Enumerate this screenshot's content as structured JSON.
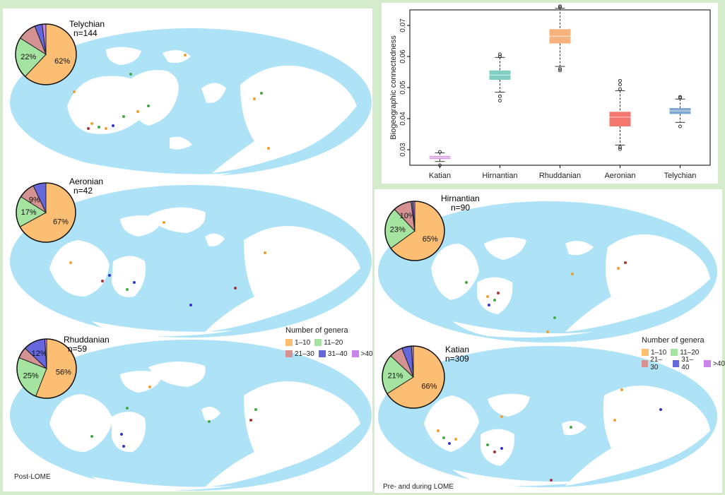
{
  "colors": {
    "background": "#d4ebcc",
    "ocean": "#aee3f7",
    "land": "#ffffff",
    "c1_10": "#fbbe72",
    "c11_20": "#a4e4a0",
    "c21_30": "#d49292",
    "c31_40": "#6666dd",
    "c_gt40": "#c884e8"
  },
  "legend": {
    "title": "Number of genera",
    "items": [
      {
        "label": "1–10",
        "color": "#fbbe72"
      },
      {
        "label": "11–20",
        "color": "#a4e4a0"
      },
      {
        "label": "21–30",
        "color": "#d49292"
      },
      {
        "label": "31–40",
        "color": "#6666dd"
      },
      {
        "label": ">40",
        "color": "#c884e8"
      }
    ]
  },
  "footer": {
    "post": "Post-LOME",
    "pre": "Pre- and during LOME"
  },
  "chart_data": [
    {
      "type": "box",
      "title": "",
      "xlabel": "",
      "ylabel": "Biogeographic connectedness",
      "ylim": [
        0.025,
        0.075
      ],
      "yticks": [
        0.03,
        0.04,
        0.05,
        0.06,
        0.07
      ],
      "ytick_labels": [
        "0.03",
        "0.04",
        "0.05",
        "0.06",
        "0.07"
      ],
      "categories": [
        "Katian",
        "Hirnantian",
        "Rhuddanian",
        "Aeronian",
        "Telychian"
      ],
      "boxes": [
        {
          "name": "Katian",
          "color": "#d69be0",
          "median": 0.0275,
          "q1": 0.027,
          "q3": 0.028,
          "whisker_low": 0.0262,
          "whisker_high": 0.029,
          "outliers": [
            0.025,
            0.0293
          ]
        },
        {
          "name": "Hirnantian",
          "color": "#7fcfc2",
          "median": 0.054,
          "q1": 0.0525,
          "q3": 0.0555,
          "whisker_low": 0.0485,
          "whisker_high": 0.0597,
          "outliers": [
            0.0458,
            0.0472,
            0.06,
            0.0607
          ]
        },
        {
          "name": "Rhuddanian",
          "color": "#f6b27c",
          "median": 0.0665,
          "q1": 0.0642,
          "q3": 0.0688,
          "whisker_low": 0.0568,
          "whisker_high": 0.0755,
          "outliers": [
            0.0555,
            0.056,
            0.0758,
            0.0762
          ]
        },
        {
          "name": "Aeronian",
          "color": "#f5786e",
          "median": 0.0405,
          "q1": 0.0375,
          "q3": 0.0422,
          "whisker_low": 0.0315,
          "whisker_high": 0.049,
          "outliers": [
            0.0302,
            0.0308,
            0.0495,
            0.051,
            0.0522
          ]
        },
        {
          "name": "Telychian",
          "color": "#7fa8d0",
          "median": 0.0425,
          "q1": 0.0415,
          "q3": 0.0434,
          "whisker_low": 0.0388,
          "whisker_high": 0.0463,
          "outliers": [
            0.0375,
            0.0467,
            0.047
          ]
        }
      ]
    },
    {
      "type": "pie",
      "name": "Telychian",
      "title": "Telychian",
      "n_label": "n=144",
      "slices": [
        {
          "category": "1–10",
          "value": 62,
          "label": "62%"
        },
        {
          "category": "11–20",
          "value": 22,
          "label": "22%"
        },
        {
          "category": "21–30",
          "value": 10,
          "label": ""
        },
        {
          "category": "31–40",
          "value": 4,
          "label": ""
        },
        {
          "category": ">40",
          "value": 2,
          "label": ""
        }
      ]
    },
    {
      "type": "pie",
      "name": "Aeronian",
      "title": "Aeronian",
      "n_label": "n=42",
      "slices": [
        {
          "category": "1–10",
          "value": 67,
          "label": "67%"
        },
        {
          "category": "11–20",
          "value": 17,
          "label": "17%"
        },
        {
          "category": "21–30",
          "value": 9,
          "label": "9%"
        },
        {
          "category": "31–40",
          "value": 7,
          "label": ""
        }
      ]
    },
    {
      "type": "pie",
      "name": "Rhuddanian",
      "title": "Rhuddanian",
      "n_label": "n=59",
      "slices": [
        {
          "category": "1–10",
          "value": 56,
          "label": "56%"
        },
        {
          "category": "11–20",
          "value": 25,
          "label": "25%"
        },
        {
          "category": "21–30",
          "value": 6,
          "label": ""
        },
        {
          "category": "31–40",
          "value": 12,
          "label": "12%"
        },
        {
          "category": ">40",
          "value": 1,
          "label": ""
        }
      ]
    },
    {
      "type": "pie",
      "name": "Hirnantian",
      "title": "Hirnantian",
      "n_label": "n=90",
      "slices": [
        {
          "category": "1–10",
          "value": 65,
          "label": "65%"
        },
        {
          "category": "11–20",
          "value": 23,
          "label": "23%"
        },
        {
          "category": "21–30",
          "value": 10,
          "label": "10%"
        },
        {
          "category": "31–40",
          "value": 1,
          "label": ""
        },
        {
          "category": ">40",
          "value": 1,
          "label": ""
        }
      ]
    },
    {
      "type": "pie",
      "name": "Katian",
      "title": "Katian",
      "n_label": "n=309",
      "slices": [
        {
          "category": "1–10",
          "value": 66,
          "label": "66%"
        },
        {
          "category": "11–20",
          "value": 21,
          "label": "21%"
        },
        {
          "category": "21–30",
          "value": 7,
          "label": ""
        },
        {
          "category": "31–40",
          "value": 5,
          "label": ""
        },
        {
          "category": ">40",
          "value": 1,
          "label": ""
        }
      ]
    }
  ]
}
